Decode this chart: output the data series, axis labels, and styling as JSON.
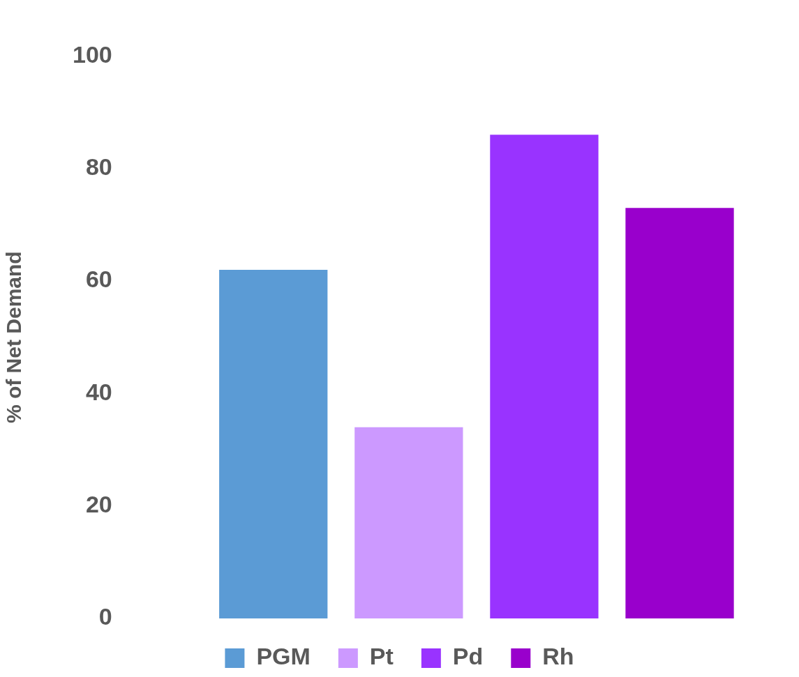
{
  "chart_data": {
    "type": "bar",
    "ylabel": "% of Net Demand",
    "categories": [
      null
    ],
    "series": [
      {
        "name": "PGM",
        "color": "#5b9bd5",
        "values": [
          62
        ]
      },
      {
        "name": "Pt",
        "color": "#cc99ff",
        "values": [
          34
        ]
      },
      {
        "name": "Pd",
        "color": "#9933ff",
        "values": [
          86
        ]
      },
      {
        "name": "Rh",
        "color": "#9900cc",
        "values": [
          73
        ]
      }
    ],
    "ylim": [
      0,
      100
    ],
    "yticks": [
      0,
      20,
      40,
      60,
      80,
      100
    ],
    "grid": false,
    "legend": "bottom",
    "tick_labels": "y"
  }
}
